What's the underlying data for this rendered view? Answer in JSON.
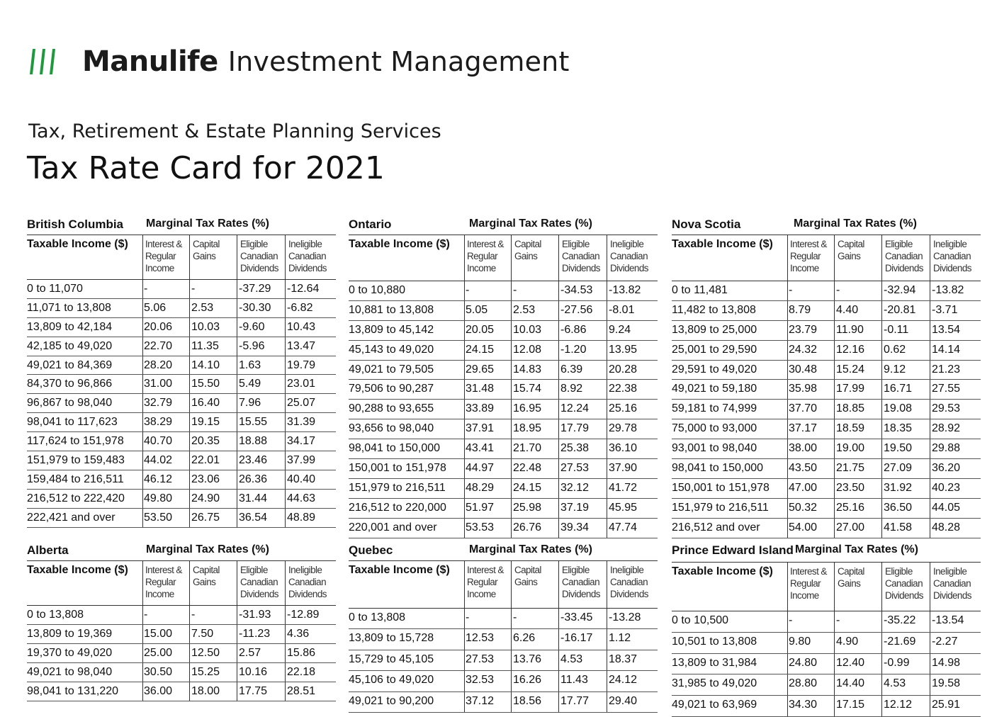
{
  "header": {
    "brand_bold": "Manulife",
    "brand_rest": "Investment Management",
    "logo_icon": "manulife-stripes-icon",
    "logo_color": "#1d9a3c",
    "subtitle": "Tax, Retirement & Estate Planning Services",
    "title": "Tax Rate Card for 2021"
  },
  "common": {
    "mtr_label": "Marginal Tax Rates (%)",
    "income_label": "Taxable Income ($)",
    "col1": [
      "Interest &",
      "Regular",
      "Income"
    ],
    "col2": [
      "Capital",
      "Gains"
    ],
    "col3": [
      "Eligible",
      "Canadian",
      "Dividends"
    ],
    "col4": [
      "Ineligible",
      "Canadian",
      "Dividends"
    ]
  },
  "provinces": {
    "bc": {
      "name": "British Columbia",
      "rows": [
        [
          "0 to 11,070",
          "-",
          "-",
          "-37.29",
          "-12.64"
        ],
        [
          "11,071 to 13,808",
          "5.06",
          "2.53",
          "-30.30",
          "-6.82"
        ],
        [
          "13,809 to 42,184",
          "20.06",
          "10.03",
          "-9.60",
          "10.43"
        ],
        [
          "42,185 to 49,020",
          "22.70",
          "11.35",
          "-5.96",
          "13.47"
        ],
        [
          "49,021 to 84,369",
          "28.20",
          "14.10",
          "1.63",
          "19.79"
        ],
        [
          "84,370 to 96,866",
          "31.00",
          "15.50",
          "5.49",
          "23.01"
        ],
        [
          "96,867 to 98,040",
          "32.79",
          "16.40",
          "7.96",
          "25.07"
        ],
        [
          "98,041 to 117,623",
          "38.29",
          "19.15",
          "15.55",
          "31.39"
        ],
        [
          "117,624 to 151,978",
          "40.70",
          "20.35",
          "18.88",
          "34.17"
        ],
        [
          "151,979 to 159,483",
          "44.02",
          "22.01",
          "23.46",
          "37.99"
        ],
        [
          "159,484 to 216,511",
          "46.12",
          "23.06",
          "26.36",
          "40.40"
        ],
        [
          "216,512 to 222,420",
          "49.80",
          "24.90",
          "31.44",
          "44.63"
        ],
        [
          "222,421 and over",
          "53.50",
          "26.75",
          "36.54",
          "48.89"
        ]
      ]
    },
    "on": {
      "name": "Ontario",
      "rows": [
        [
          "0 to 10,880",
          "-",
          "-",
          "-34.53",
          "-13.82"
        ],
        [
          "10,881 to 13,808",
          "5.05",
          "2.53",
          "-27.56",
          "-8.01"
        ],
        [
          "13,809 to 45,142",
          "20.05",
          "10.03",
          "-6.86",
          "9.24"
        ],
        [
          "45,143 to 49,020",
          "24.15",
          "12.08",
          "-1.20",
          "13.95"
        ],
        [
          "49,021 to 79,505",
          "29.65",
          "14.83",
          "6.39",
          "20.28"
        ],
        [
          "79,506 to 90,287",
          "31.48",
          "15.74",
          "8.92",
          "22.38"
        ],
        [
          "90,288 to 93,655",
          "33.89",
          "16.95",
          "12.24",
          "25.16"
        ],
        [
          "93,656 to 98,040",
          "37.91",
          "18.95",
          "17.79",
          "29.78"
        ],
        [
          "98,041 to 150,000",
          "43.41",
          "21.70",
          "25.38",
          "36.10"
        ],
        [
          "150,001 to 151,978",
          "44.97",
          "22.48",
          "27.53",
          "37.90"
        ],
        [
          "151,979 to 216,511",
          "48.29",
          "24.15",
          "32.12",
          "41.72"
        ],
        [
          "216,512 to 220,000",
          "51.97",
          "25.98",
          "37.19",
          "45.95"
        ],
        [
          "220,001 and over",
          "53.53",
          "26.76",
          "39.34",
          "47.74"
        ]
      ]
    },
    "ns": {
      "name": "Nova Scotia",
      "rows": [
        [
          "0 to 11,481",
          "-",
          "-",
          "-32.94",
          "-13.82"
        ],
        [
          "11,482 to 13,808",
          "8.79",
          "4.40",
          "-20.81",
          "-3.71"
        ],
        [
          "13,809 to 25,000",
          "23.79",
          "11.90",
          "-0.11",
          "13.54"
        ],
        [
          "25,001 to 29,590",
          "24.32",
          "12.16",
          "0.62",
          "14.14"
        ],
        [
          "29,591 to 49,020",
          "30.48",
          "15.24",
          "9.12",
          "21.23"
        ],
        [
          "49,021 to 59,180",
          "35.98",
          "17.99",
          "16.71",
          "27.55"
        ],
        [
          "59,181 to 74,999",
          "37.70",
          "18.85",
          "19.08",
          "29.53"
        ],
        [
          "75,000 to 93,000",
          "37.17",
          "18.59",
          "18.35",
          "28.92"
        ],
        [
          "93,001 to 98,040",
          "38.00",
          "19.00",
          "19.50",
          "29.88"
        ],
        [
          "98,041 to 150,000",
          "43.50",
          "21.75",
          "27.09",
          "36.20"
        ],
        [
          "150,001 to 151,978",
          "47.00",
          "23.50",
          "31.92",
          "40.23"
        ],
        [
          "151,979 to 216,511",
          "50.32",
          "25.16",
          "36.50",
          "44.05"
        ],
        [
          "216,512 and over",
          "54.00",
          "27.00",
          "41.58",
          "48.28"
        ]
      ]
    },
    "ab": {
      "name": "Alberta",
      "rows": [
        [
          "0 to 13,808",
          "-",
          "-",
          "-31.93",
          "-12.89"
        ],
        [
          "13,809 to 19,369",
          "15.00",
          "7.50",
          "-11.23",
          "4.36"
        ],
        [
          "19,370 to 49,020",
          "25.00",
          "12.50",
          "2.57",
          "15.86"
        ],
        [
          "49,021 to 98,040",
          "30.50",
          "15.25",
          "10.16",
          "22.18"
        ],
        [
          "98,041 to 131,220",
          "36.00",
          "18.00",
          "17.75",
          "28.51"
        ]
      ]
    },
    "qc": {
      "name": "Quebec",
      "rows": [
        [
          "0 to 13,808",
          "-",
          "-",
          "-33.45",
          "-13.28"
        ],
        [
          "13,809 to 15,728",
          "12.53",
          "6.26",
          "-16.17",
          "1.12"
        ],
        [
          "15,729 to 45,105",
          "27.53",
          "13.76",
          "4.53",
          "18.37"
        ],
        [
          "45,106 to 49,020",
          "32.53",
          "16.26",
          "11.43",
          "24.12"
        ],
        [
          "49,021 to 90,200",
          "37.12",
          "18.56",
          "17.77",
          "29.40"
        ]
      ]
    },
    "pei": {
      "name": "Prince Edward Island",
      "rows": [
        [
          "0 to 10,500",
          "-",
          "-",
          "-35.22",
          "-13.54"
        ],
        [
          "10,501 to 13,808",
          "9.80",
          "4.90",
          "-21.69",
          "-2.27"
        ],
        [
          "13,809 to 31,984",
          "24.80",
          "12.40",
          "-0.99",
          "14.98"
        ],
        [
          "31,985 to 49,020",
          "28.80",
          "14.40",
          "4.53",
          "19.58"
        ],
        [
          "49,021 to 63,969",
          "34.30",
          "17.15",
          "12.12",
          "25.91"
        ]
      ]
    }
  }
}
